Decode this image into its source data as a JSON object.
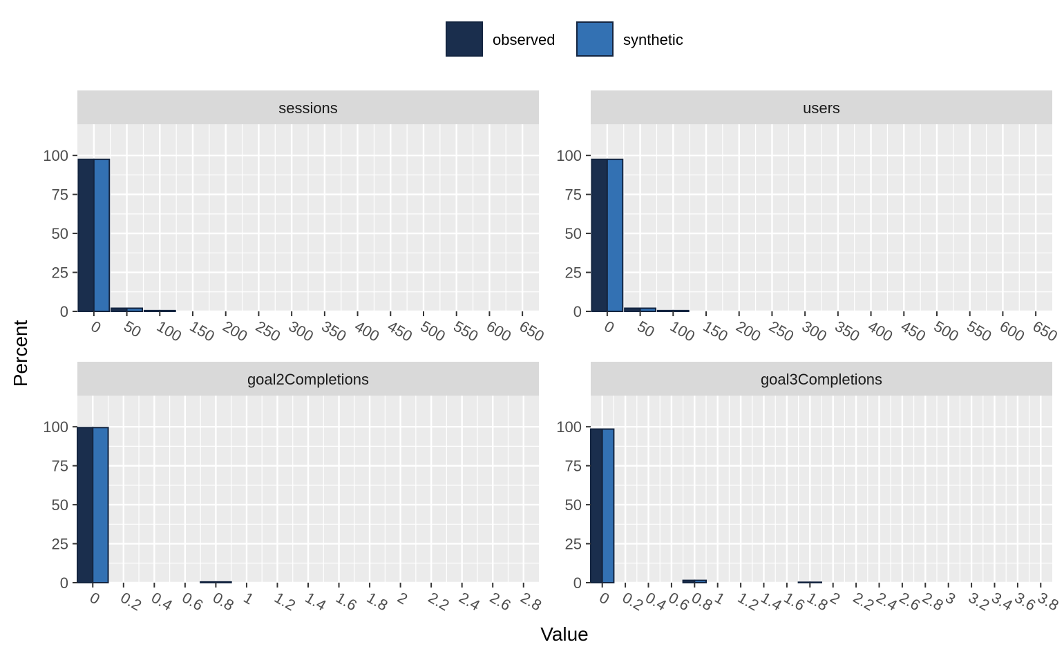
{
  "legend": {
    "items": [
      {
        "label": "observed",
        "color": "#1a2e4d"
      },
      {
        "label": "synthetic",
        "color": "#3371b3"
      }
    ],
    "border_color": "#142540"
  },
  "axes": {
    "xlabel": "Value",
    "ylabel": "Percent"
  },
  "chart_data": [
    {
      "type": "bar",
      "title": "sessions",
      "ylim": [
        0,
        120
      ],
      "y_ticks": [
        0,
        25,
        50,
        75,
        100
      ],
      "xlim": [
        -25,
        675
      ],
      "x_ticks": [
        0,
        50,
        100,
        150,
        200,
        250,
        300,
        350,
        400,
        450,
        500,
        550,
        600,
        650
      ],
      "bin_width": 47,
      "bin_centers": [
        0,
        50,
        100,
        150,
        200,
        250,
        300,
        350,
        400,
        450,
        500,
        550,
        600,
        650
      ],
      "series": [
        {
          "name": "observed",
          "values": [
            97.5,
            2.0,
            0.5,
            0,
            0,
            0,
            0,
            0,
            0,
            0,
            0,
            0,
            0,
            0
          ]
        },
        {
          "name": "synthetic",
          "values": [
            97.5,
            2.0,
            0.5,
            0,
            0,
            0,
            0,
            0,
            0,
            0,
            0,
            0,
            0,
            0
          ]
        }
      ]
    },
    {
      "type": "bar",
      "title": "users",
      "ylim": [
        0,
        120
      ],
      "y_ticks": [
        0,
        25,
        50,
        75,
        100
      ],
      "xlim": [
        -25,
        675
      ],
      "x_ticks": [
        0,
        50,
        100,
        150,
        200,
        250,
        300,
        350,
        400,
        450,
        500,
        550,
        600,
        650
      ],
      "bin_width": 47,
      "bin_centers": [
        0,
        50,
        100,
        150,
        200,
        250,
        300,
        350,
        400,
        450,
        500,
        550,
        600,
        650
      ],
      "series": [
        {
          "name": "observed",
          "values": [
            97.5,
            2.0,
            0.5,
            0,
            0,
            0,
            0,
            0,
            0,
            0,
            0,
            0,
            0,
            0
          ]
        },
        {
          "name": "synthetic",
          "values": [
            97.5,
            2.0,
            0.5,
            0,
            0,
            0,
            0,
            0,
            0,
            0,
            0,
            0,
            0,
            0
          ]
        }
      ]
    },
    {
      "type": "bar",
      "title": "goal2Completions",
      "ylim": [
        0,
        120
      ],
      "y_ticks": [
        0,
        25,
        50,
        75,
        100
      ],
      "xlim": [
        -0.1,
        2.9
      ],
      "x_ticks": [
        0,
        0.2,
        0.4,
        0.6,
        0.8,
        1,
        1.2,
        1.4,
        1.6,
        1.8,
        2,
        2.2,
        2.4,
        2.6,
        2.8
      ],
      "bin_width": 0.2,
      "bin_centers": [
        0,
        0.2,
        0.4,
        0.6,
        0.8,
        1,
        1.2,
        1.4,
        1.6,
        1.8,
        2,
        2.2,
        2.4,
        2.6,
        2.8
      ],
      "series": [
        {
          "name": "observed",
          "values": [
            99.5,
            0,
            0,
            0,
            0.5,
            0,
            0,
            0,
            0,
            0,
            0,
            0,
            0,
            0,
            0
          ]
        },
        {
          "name": "synthetic",
          "values": [
            99.5,
            0,
            0,
            0,
            0.5,
            0,
            0,
            0,
            0,
            0,
            0,
            0,
            0,
            0,
            0
          ]
        }
      ]
    },
    {
      "type": "bar",
      "title": "goal3Completions",
      "ylim": [
        0,
        120
      ],
      "y_ticks": [
        0,
        25,
        50,
        75,
        100
      ],
      "xlim": [
        -0.1,
        3.9
      ],
      "x_ticks": [
        0,
        0.2,
        0.4,
        0.6,
        0.8,
        1,
        1.2,
        1.4,
        1.6,
        1.8,
        2,
        2.2,
        2.4,
        2.6,
        2.8,
        3,
        3.2,
        3.4,
        3.6,
        3.8
      ],
      "bin_width": 0.2,
      "bin_centers": [
        0,
        0.2,
        0.4,
        0.6,
        0.8,
        1,
        1.2,
        1.4,
        1.6,
        1.8,
        2,
        2.2,
        2.4,
        2.6,
        2.8,
        3,
        3.2,
        3.4,
        3.6,
        3.8
      ],
      "series": [
        {
          "name": "observed",
          "values": [
            98.5,
            0,
            0,
            0,
            1.5,
            0,
            0,
            0,
            0,
            0.3,
            0,
            0,
            0,
            0,
            0,
            0,
            0,
            0,
            0,
            0
          ]
        },
        {
          "name": "synthetic",
          "values": [
            98.5,
            0,
            0,
            0,
            1.5,
            0,
            0,
            0,
            0,
            0.3,
            0,
            0,
            0,
            0,
            0,
            0,
            0,
            0,
            0,
            0
          ]
        }
      ]
    }
  ]
}
